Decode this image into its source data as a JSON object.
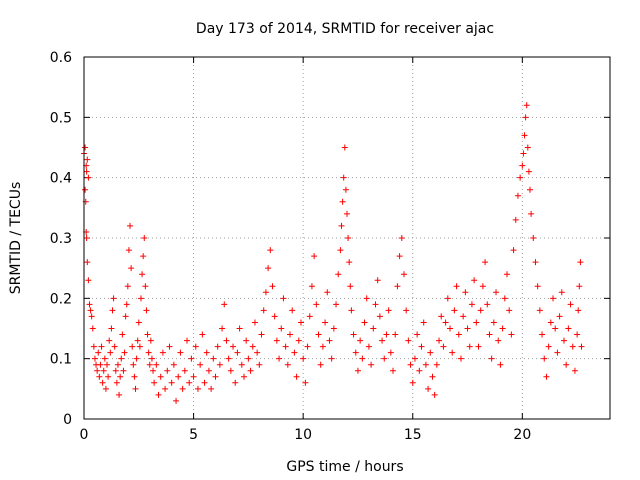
{
  "chart_data": {
    "type": "scatter",
    "title": "Day 173 of 2014, SRMTID for receiver ajac",
    "xlabel": "GPS time / hours",
    "ylabel": "SRMTID / TECUs",
    "xlim": [
      0,
      24
    ],
    "ylim": [
      0,
      0.6
    ],
    "xticks": [
      0,
      5,
      10,
      15,
      20
    ],
    "xtick_labels": [
      "0",
      "5",
      "10",
      "15",
      "20"
    ],
    "yticks": [
      0,
      0.1,
      0.2,
      0.3,
      0.4,
      0.5,
      0.6
    ],
    "ytick_labels": [
      "0",
      "0.1",
      "0.2",
      "0.3",
      "0.4",
      "0.5",
      "0.6"
    ],
    "grid": true,
    "marker": "+",
    "color": "#ff0000",
    "series": [
      {
        "name": "ajac",
        "points": [
          [
            0.0,
            0.44
          ],
          [
            0.05,
            0.45
          ],
          [
            0.1,
            0.42
          ],
          [
            0.12,
            0.41
          ],
          [
            0.15,
            0.43
          ],
          [
            0.2,
            0.4
          ],
          [
            0.05,
            0.38
          ],
          [
            0.08,
            0.36
          ],
          [
            0.1,
            0.31
          ],
          [
            0.12,
            0.3
          ],
          [
            0.15,
            0.26
          ],
          [
            0.2,
            0.23
          ],
          [
            0.25,
            0.19
          ],
          [
            0.3,
            0.18
          ],
          [
            0.35,
            0.17
          ],
          [
            0.4,
            0.15
          ],
          [
            0.45,
            0.12
          ],
          [
            0.5,
            0.1
          ],
          [
            0.55,
            0.09
          ],
          [
            0.6,
            0.08
          ],
          [
            0.65,
            0.11
          ],
          [
            0.7,
            0.07
          ],
          [
            0.75,
            0.09
          ],
          [
            0.8,
            0.12
          ],
          [
            0.85,
            0.06
          ],
          [
            0.9,
            0.08
          ],
          [
            0.95,
            0.1
          ],
          [
            1.0,
            0.05
          ],
          [
            1.05,
            0.09
          ],
          [
            1.1,
            0.07
          ],
          [
            1.15,
            0.13
          ],
          [
            1.2,
            0.11
          ],
          [
            1.25,
            0.15
          ],
          [
            1.3,
            0.18
          ],
          [
            1.35,
            0.2
          ],
          [
            1.4,
            0.12
          ],
          [
            1.45,
            0.08
          ],
          [
            1.5,
            0.06
          ],
          [
            1.55,
            0.09
          ],
          [
            1.6,
            0.04
          ],
          [
            1.65,
            0.07
          ],
          [
            1.7,
            0.1
          ],
          [
            1.75,
            0.14
          ],
          [
            1.8,
            0.08
          ],
          [
            1.85,
            0.11
          ],
          [
            1.9,
            0.17
          ],
          [
            1.95,
            0.19
          ],
          [
            2.0,
            0.22
          ],
          [
            2.05,
            0.28
          ],
          [
            2.1,
            0.32
          ],
          [
            2.15,
            0.25
          ],
          [
            2.2,
            0.12
          ],
          [
            2.25,
            0.09
          ],
          [
            2.3,
            0.07
          ],
          [
            2.35,
            0.05
          ],
          [
            2.4,
            0.1
          ],
          [
            2.45,
            0.13
          ],
          [
            2.5,
            0.16
          ],
          [
            2.55,
            0.12
          ],
          [
            2.6,
            0.2
          ],
          [
            2.65,
            0.24
          ],
          [
            2.7,
            0.27
          ],
          [
            2.75,
            0.3
          ],
          [
            2.8,
            0.22
          ],
          [
            2.85,
            0.18
          ],
          [
            2.9,
            0.14
          ],
          [
            2.95,
            0.11
          ],
          [
            3.0,
            0.09
          ],
          [
            3.05,
            0.13
          ],
          [
            3.1,
            0.1
          ],
          [
            3.15,
            0.08
          ],
          [
            3.2,
            0.06
          ],
          [
            3.3,
            0.09
          ],
          [
            3.4,
            0.04
          ],
          [
            3.5,
            0.07
          ],
          [
            3.6,
            0.11
          ],
          [
            3.7,
            0.05
          ],
          [
            3.8,
            0.08
          ],
          [
            3.9,
            0.12
          ],
          [
            4.0,
            0.06
          ],
          [
            4.1,
            0.09
          ],
          [
            4.2,
            0.03
          ],
          [
            4.3,
            0.07
          ],
          [
            4.4,
            0.11
          ],
          [
            4.5,
            0.05
          ],
          [
            4.6,
            0.08
          ],
          [
            4.7,
            0.13
          ],
          [
            4.8,
            0.06
          ],
          [
            4.9,
            0.1
          ],
          [
            5.0,
            0.07
          ],
          [
            5.1,
            0.12
          ],
          [
            5.2,
            0.05
          ],
          [
            5.3,
            0.09
          ],
          [
            5.4,
            0.14
          ],
          [
            5.5,
            0.06
          ],
          [
            5.6,
            0.11
          ],
          [
            5.7,
            0.08
          ],
          [
            5.8,
            0.05
          ],
          [
            5.9,
            0.1
          ],
          [
            6.0,
            0.07
          ],
          [
            6.1,
            0.12
          ],
          [
            6.2,
            0.09
          ],
          [
            6.3,
            0.15
          ],
          [
            6.4,
            0.19
          ],
          [
            6.5,
            0.13
          ],
          [
            6.6,
            0.1
          ],
          [
            6.7,
            0.08
          ],
          [
            6.8,
            0.12
          ],
          [
            6.9,
            0.06
          ],
          [
            7.0,
            0.11
          ],
          [
            7.1,
            0.15
          ],
          [
            7.2,
            0.09
          ],
          [
            7.3,
            0.07
          ],
          [
            7.4,
            0.13
          ],
          [
            7.5,
            0.1
          ],
          [
            7.6,
            0.08
          ],
          [
            7.7,
            0.12
          ],
          [
            7.8,
            0.16
          ],
          [
            7.9,
            0.11
          ],
          [
            8.0,
            0.09
          ],
          [
            8.1,
            0.14
          ],
          [
            8.2,
            0.18
          ],
          [
            8.3,
            0.21
          ],
          [
            8.4,
            0.25
          ],
          [
            8.5,
            0.28
          ],
          [
            8.6,
            0.22
          ],
          [
            8.7,
            0.17
          ],
          [
            8.8,
            0.13
          ],
          [
            8.9,
            0.1
          ],
          [
            9.0,
            0.15
          ],
          [
            9.1,
            0.2
          ],
          [
            9.2,
            0.12
          ],
          [
            9.3,
            0.09
          ],
          [
            9.4,
            0.14
          ],
          [
            9.5,
            0.18
          ],
          [
            9.6,
            0.11
          ],
          [
            9.7,
            0.07
          ],
          [
            9.8,
            0.13
          ],
          [
            9.9,
            0.16
          ],
          [
            10.0,
            0.1
          ],
          [
            10.1,
            0.06
          ],
          [
            10.2,
            0.12
          ],
          [
            10.3,
            0.17
          ],
          [
            10.4,
            0.22
          ],
          [
            10.5,
            0.27
          ],
          [
            10.6,
            0.19
          ],
          [
            10.7,
            0.14
          ],
          [
            10.8,
            0.09
          ],
          [
            10.9,
            0.12
          ],
          [
            11.0,
            0.16
          ],
          [
            11.1,
            0.21
          ],
          [
            11.2,
            0.13
          ],
          [
            11.3,
            0.1
          ],
          [
            11.4,
            0.15
          ],
          [
            11.5,
            0.19
          ],
          [
            11.6,
            0.24
          ],
          [
            11.7,
            0.28
          ],
          [
            11.75,
            0.32
          ],
          [
            11.8,
            0.36
          ],
          [
            11.85,
            0.4
          ],
          [
            11.9,
            0.45
          ],
          [
            11.95,
            0.38
          ],
          [
            12.0,
            0.34
          ],
          [
            12.05,
            0.3
          ],
          [
            12.1,
            0.26
          ],
          [
            12.15,
            0.22
          ],
          [
            12.2,
            0.18
          ],
          [
            12.3,
            0.14
          ],
          [
            12.4,
            0.11
          ],
          [
            12.5,
            0.08
          ],
          [
            12.6,
            0.13
          ],
          [
            12.7,
            0.1
          ],
          [
            12.8,
            0.16
          ],
          [
            12.9,
            0.2
          ],
          [
            13.0,
            0.12
          ],
          [
            13.1,
            0.09
          ],
          [
            13.2,
            0.15
          ],
          [
            13.3,
            0.19
          ],
          [
            13.4,
            0.23
          ],
          [
            13.5,
            0.17
          ],
          [
            13.6,
            0.13
          ],
          [
            13.7,
            0.1
          ],
          [
            13.8,
            0.14
          ],
          [
            13.9,
            0.18
          ],
          [
            14.0,
            0.11
          ],
          [
            14.1,
            0.08
          ],
          [
            14.2,
            0.14
          ],
          [
            14.3,
            0.22
          ],
          [
            14.4,
            0.27
          ],
          [
            14.5,
            0.3
          ],
          [
            14.6,
            0.24
          ],
          [
            14.7,
            0.18
          ],
          [
            14.8,
            0.13
          ],
          [
            14.9,
            0.09
          ],
          [
            15.0,
            0.06
          ],
          [
            15.1,
            0.1
          ],
          [
            15.2,
            0.14
          ],
          [
            15.3,
            0.08
          ],
          [
            15.4,
            0.12
          ],
          [
            15.5,
            0.16
          ],
          [
            15.6,
            0.09
          ],
          [
            15.7,
            0.05
          ],
          [
            15.8,
            0.11
          ],
          [
            15.9,
            0.07
          ],
          [
            16.0,
            0.04
          ],
          [
            16.1,
            0.09
          ],
          [
            16.2,
            0.13
          ],
          [
            16.3,
            0.17
          ],
          [
            16.4,
            0.12
          ],
          [
            16.5,
            0.16
          ],
          [
            16.6,
            0.2
          ],
          [
            16.7,
            0.15
          ],
          [
            16.8,
            0.11
          ],
          [
            16.9,
            0.18
          ],
          [
            17.0,
            0.22
          ],
          [
            17.1,
            0.14
          ],
          [
            17.2,
            0.1
          ],
          [
            17.3,
            0.17
          ],
          [
            17.4,
            0.21
          ],
          [
            17.5,
            0.15
          ],
          [
            17.6,
            0.12
          ],
          [
            17.7,
            0.19
          ],
          [
            17.8,
            0.23
          ],
          [
            17.9,
            0.16
          ],
          [
            18.0,
            0.12
          ],
          [
            18.1,
            0.18
          ],
          [
            18.2,
            0.22
          ],
          [
            18.3,
            0.26
          ],
          [
            18.4,
            0.19
          ],
          [
            18.5,
            0.14
          ],
          [
            18.6,
            0.1
          ],
          [
            18.7,
            0.16
          ],
          [
            18.8,
            0.21
          ],
          [
            18.9,
            0.13
          ],
          [
            19.0,
            0.09
          ],
          [
            19.1,
            0.15
          ],
          [
            19.2,
            0.2
          ],
          [
            19.3,
            0.24
          ],
          [
            19.4,
            0.18
          ],
          [
            19.5,
            0.14
          ],
          [
            19.6,
            0.28
          ],
          [
            19.7,
            0.33
          ],
          [
            19.8,
            0.37
          ],
          [
            19.9,
            0.4
          ],
          [
            20.0,
            0.42
          ],
          [
            20.05,
            0.44
          ],
          [
            20.1,
            0.47
          ],
          [
            20.15,
            0.5
          ],
          [
            20.2,
            0.52
          ],
          [
            20.25,
            0.45
          ],
          [
            20.3,
            0.41
          ],
          [
            20.35,
            0.38
          ],
          [
            20.4,
            0.34
          ],
          [
            20.5,
            0.3
          ],
          [
            20.6,
            0.26
          ],
          [
            20.7,
            0.22
          ],
          [
            20.8,
            0.18
          ],
          [
            20.9,
            0.14
          ],
          [
            21.0,
            0.1
          ],
          [
            21.1,
            0.07
          ],
          [
            21.2,
            0.12
          ],
          [
            21.3,
            0.16
          ],
          [
            21.4,
            0.2
          ],
          [
            21.5,
            0.15
          ],
          [
            21.6,
            0.11
          ],
          [
            21.7,
            0.17
          ],
          [
            21.8,
            0.21
          ],
          [
            21.9,
            0.13
          ],
          [
            22.0,
            0.09
          ],
          [
            22.1,
            0.15
          ],
          [
            22.2,
            0.19
          ],
          [
            22.3,
            0.12
          ],
          [
            22.4,
            0.08
          ],
          [
            22.5,
            0.14
          ],
          [
            22.55,
            0.18
          ],
          [
            22.6,
            0.22
          ],
          [
            22.65,
            0.26
          ],
          [
            22.7,
            0.12
          ]
        ]
      }
    ]
  }
}
